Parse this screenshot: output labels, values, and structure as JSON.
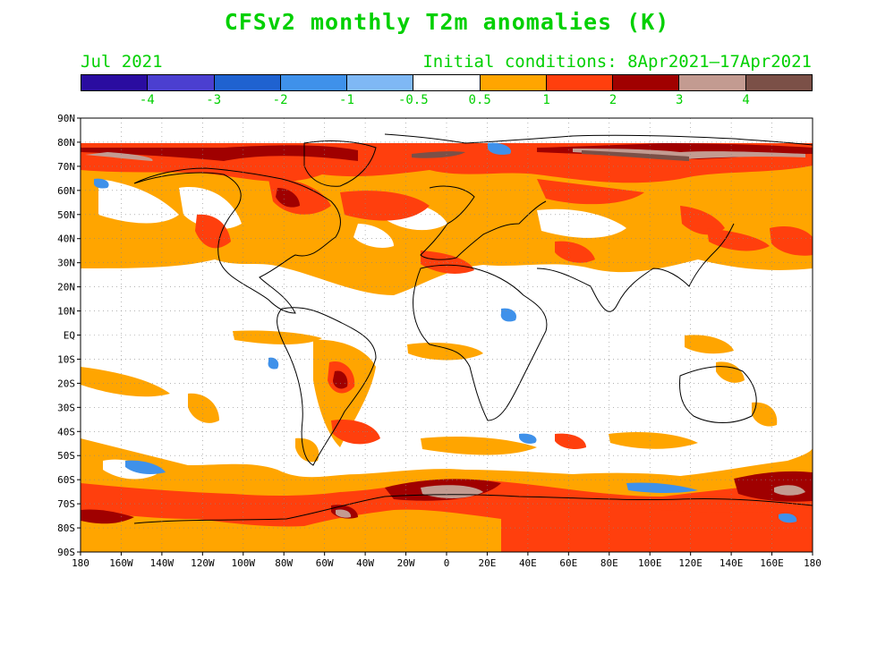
{
  "title": "CFSv2 monthly T2m anomalies (K)",
  "forecast_month": "Jul 2021",
  "initial_conditions": "Initial conditions: 8Apr2021–17Apr2021",
  "colorbar": {
    "labels": [
      "-4",
      "-3",
      "-2",
      "-1",
      "-0.5",
      "0.5",
      "1",
      "2",
      "3",
      "4"
    ],
    "colors": [
      "#2a0ca0",
      "#4b3fd0",
      "#1f62d0",
      "#3f91ea",
      "#7fb8f5",
      "#ffffff",
      "#ffa500",
      "#ff3f0d",
      "#a00000",
      "#c39b91",
      "#7b5047"
    ]
  },
  "axes": {
    "lat_labels": [
      "90N",
      "80N",
      "70N",
      "60N",
      "50N",
      "40N",
      "30N",
      "20N",
      "10N",
      "EQ",
      "10S",
      "20S",
      "30S",
      "40S",
      "50S",
      "60S",
      "70S",
      "80S",
      "90S"
    ],
    "lon_labels": [
      "180",
      "160W",
      "140W",
      "120W",
      "100W",
      "80W",
      "60W",
      "40W",
      "20W",
      "0",
      "20E",
      "40E",
      "60E",
      "80E",
      "100E",
      "120E",
      "140E",
      "160E",
      "180"
    ]
  }
}
